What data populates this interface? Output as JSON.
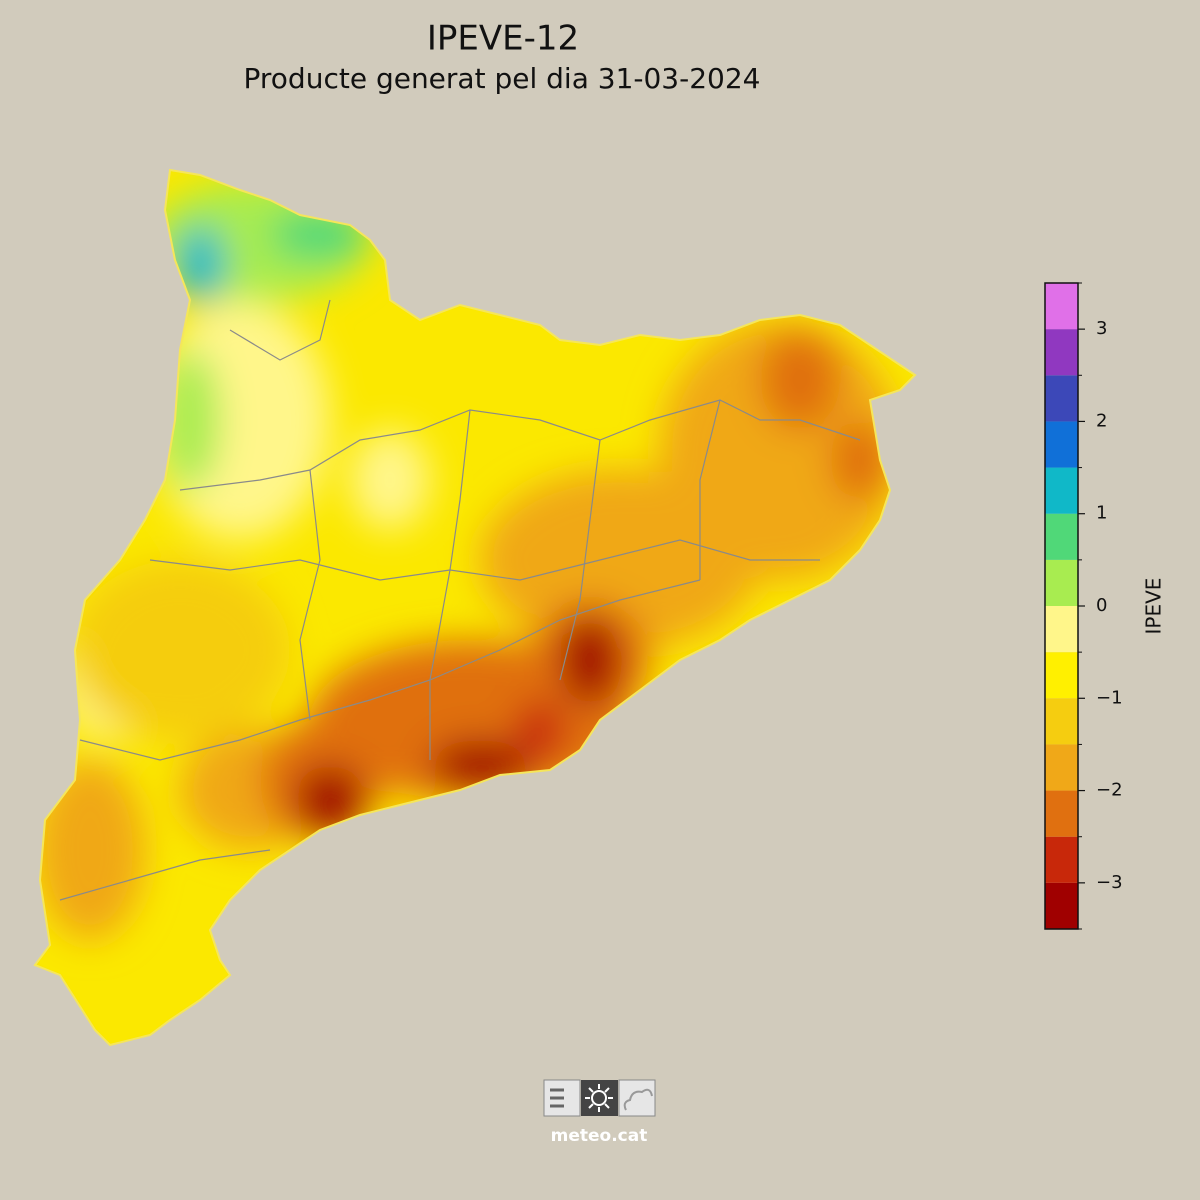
{
  "header": {
    "title": "IPEVE-12",
    "subtitle": "Producte generat pel dia 31-03-2024"
  },
  "colorbar": {
    "label": "IPEVE",
    "range": [
      -3.5,
      3.5
    ],
    "boundaries": [
      -3.5,
      -3,
      -2.5,
      -2,
      -1.5,
      -1,
      -0.5,
      0,
      0.5,
      1,
      1.5,
      2,
      2.5,
      3,
      3.5
    ],
    "colors": [
      "#a00000",
      "#c8280a",
      "#e07010",
      "#f0a818",
      "#f5cd10",
      "#fff000",
      "#fff68a",
      "#a8ec50",
      "#50d878",
      "#10b8c8",
      "#1070d8",
      "#3c48b8",
      "#9038c0",
      "#e070e8"
    ],
    "ticks": [
      {
        "value": -3,
        "label": "−3"
      },
      {
        "value": -2,
        "label": "−2"
      },
      {
        "value": -1,
        "label": "−1"
      },
      0,
      1,
      2,
      3
    ],
    "minor_ticks": [
      -3.5,
      -2.5,
      -1.5,
      -0.5,
      0.5,
      1.5,
      2.5,
      3.5
    ]
  },
  "footer": {
    "logo_text": "meteo.cat"
  }
}
